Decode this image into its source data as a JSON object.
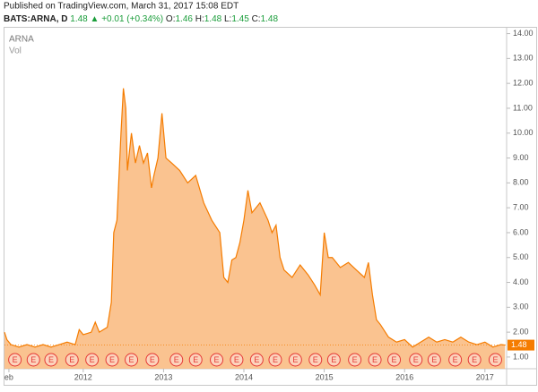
{
  "header": {
    "published": "Published on TradingView.com, March 31, 2017 15:08 EDT",
    "symbol": "BATS:ARNA, D",
    "price": "1.48",
    "arrow": "▲",
    "change": "+0.01 (+0.34%)",
    "o_label": "O:",
    "o": "1.46",
    "h_label": "H:",
    "h": "1.48",
    "l_label": "L:",
    "l": "1.45",
    "c_label": "C:",
    "c": "1.48"
  },
  "chart_data": {
    "type": "area",
    "legend": [
      "ARNA",
      "Vol"
    ],
    "series": [
      {
        "name": "ARNA",
        "color": "#f57c00",
        "fill": "#f9b97c",
        "x": [
          2011.02,
          2011.05,
          2011.1,
          2011.2,
          2011.3,
          2011.4,
          2011.5,
          2011.6,
          2011.7,
          2011.8,
          2011.9,
          2011.95,
          2012.0,
          2012.1,
          2012.15,
          2012.2,
          2012.3,
          2012.35,
          2012.38,
          2012.42,
          2012.47,
          2012.5,
          2012.53,
          2012.55,
          2012.6,
          2012.65,
          2012.7,
          2012.75,
          2012.8,
          2012.85,
          2012.88,
          2012.93,
          2012.98,
          2013.03,
          2013.1,
          2013.2,
          2013.3,
          2013.4,
          2013.5,
          2013.6,
          2013.7,
          2013.75,
          2013.8,
          2013.85,
          2013.9,
          2013.95,
          2014.0,
          2014.05,
          2014.1,
          2014.2,
          2014.3,
          2014.35,
          2014.4,
          2014.45,
          2014.5,
          2014.6,
          2014.7,
          2014.8,
          2014.88,
          2014.95,
          2015.0,
          2015.05,
          2015.1,
          2015.2,
          2015.3,
          2015.4,
          2015.5,
          2015.55,
          2015.6,
          2015.65,
          2015.7,
          2015.8,
          2015.9,
          2016.0,
          2016.1,
          2016.2,
          2016.3,
          2016.4,
          2016.5,
          2016.6,
          2016.7,
          2016.8,
          2016.9,
          2017.0,
          2017.1,
          2017.2,
          2017.25
        ],
        "values": [
          2.0,
          1.7,
          1.5,
          1.4,
          1.5,
          1.4,
          1.5,
          1.4,
          1.5,
          1.6,
          1.5,
          2.1,
          1.9,
          2.0,
          2.4,
          2.0,
          2.2,
          3.2,
          6.0,
          6.5,
          10.0,
          11.8,
          11.0,
          8.5,
          10.0,
          8.8,
          9.5,
          8.8,
          9.2,
          7.8,
          8.3,
          9.0,
          10.8,
          9.0,
          8.8,
          8.5,
          8.0,
          8.3,
          7.2,
          6.5,
          6.0,
          4.2,
          4.0,
          4.9,
          5.0,
          5.6,
          6.5,
          7.7,
          6.8,
          7.2,
          6.5,
          6.0,
          6.3,
          5.0,
          4.5,
          4.2,
          4.7,
          4.3,
          3.9,
          3.5,
          6.0,
          5.0,
          5.0,
          4.6,
          4.8,
          4.5,
          4.2,
          4.8,
          3.5,
          2.5,
          2.3,
          1.8,
          1.6,
          1.7,
          1.4,
          1.6,
          1.8,
          1.6,
          1.7,
          1.6,
          1.8,
          1.6,
          1.5,
          1.6,
          1.4,
          1.5,
          1.48
        ]
      }
    ],
    "last_price": 1.48,
    "xlim": [
      2011.02,
      2017.27
    ],
    "xticks": [
      {
        "value": 2011.075,
        "label": "eb"
      },
      2012,
      2013,
      2014,
      2015,
      2016,
      2017
    ],
    "ylim": [
      0.53,
      14.2
    ],
    "yticks": [
      {
        "value": 1,
        "label": "1.00"
      },
      {
        "value": 2,
        "label": "2.00"
      },
      {
        "value": 3,
        "label": "3.00"
      },
      {
        "value": 4,
        "label": "4.00"
      },
      {
        "value": 5,
        "label": "5.00"
      },
      {
        "value": 6,
        "label": "6.00"
      },
      {
        "value": 7,
        "label": "7.00"
      },
      {
        "value": 8,
        "label": "8.00"
      },
      {
        "value": 9,
        "label": "9.00"
      },
      {
        "value": 10,
        "label": "10.00"
      },
      {
        "value": 11,
        "label": "11.00"
      },
      {
        "value": 12,
        "label": "12.00"
      },
      {
        "value": 13,
        "label": "13.00"
      },
      {
        "value": 14,
        "label": "14.00"
      }
    ],
    "grid": false,
    "events": {
      "label": "E",
      "color": "#e53935",
      "x": [
        2011.15,
        2011.38,
        2011.6,
        2011.86,
        2012.11,
        2012.36,
        2012.6,
        2012.86,
        2013.16,
        2013.4,
        2013.66,
        2013.91,
        2014.16,
        2014.39,
        2014.64,
        2014.89,
        2015.12,
        2015.38,
        2015.63,
        2015.87,
        2016.14,
        2016.37,
        2016.63,
        2016.87,
        2017.13
      ]
    }
  }
}
